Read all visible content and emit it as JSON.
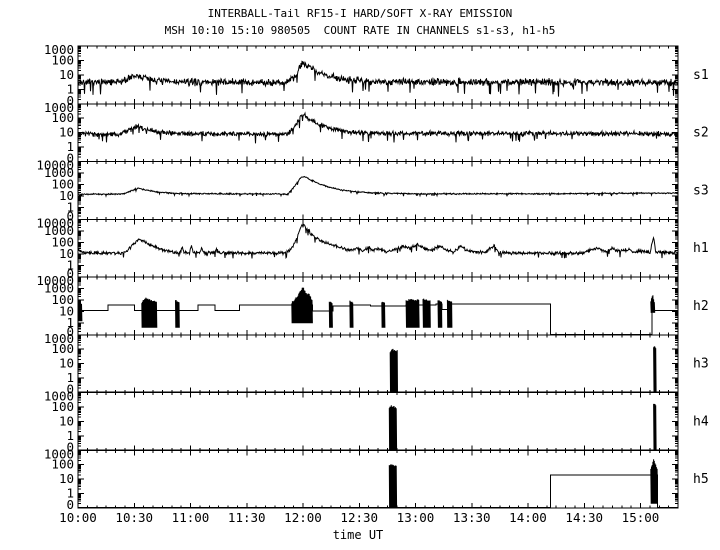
{
  "title": "INTERBALL-Tail RF15-I HARD/SOFT X-RAY EMISSION",
  "subtitle": "MSH 10:10 15:10 980505  COUNT RATE IN CHANNELS s1-s3, h1-h5",
  "xlabel": "time UT",
  "colors": {
    "background": "#ffffff",
    "line": "#000000"
  },
  "chart_data": {
    "type": "line",
    "title": "INTERBALL-Tail RF15-I HARD/SOFT X-RAY EMISSION",
    "subtitle": "MSH 10:10 15:10 980505  COUNT RATE IN CHANNELS s1-s3, h1-h5",
    "xlabel": "time UT",
    "y_scale": "log",
    "grid": false,
    "x_axis": {
      "t0": 600,
      "t1": 920,
      "major": 30,
      "minor": 5,
      "labels": [
        "10:00",
        "10:30",
        "11:00",
        "11:30",
        "12:00",
        "12:30",
        "13:00",
        "13:30",
        "14:00",
        "14:30",
        "15:00"
      ]
    },
    "panels": [
      {
        "label": "s1",
        "y_ticks": [
          "1000",
          "100",
          "10",
          "1",
          "0"
        ],
        "top": 1000,
        "decades": 4,
        "style": "noisy",
        "noise": 0.3,
        "points": [
          [
            600,
            3
          ],
          [
            621,
            3
          ],
          [
            627,
            5.5
          ],
          [
            631,
            8.5
          ],
          [
            636,
            6
          ],
          [
            643,
            4
          ],
          [
            652,
            3.2
          ],
          [
            712,
            3
          ],
          [
            716,
            8
          ],
          [
            719,
            55
          ],
          [
            721,
            65
          ],
          [
            724,
            35
          ],
          [
            728,
            15
          ],
          [
            734,
            8
          ],
          [
            742,
            5
          ],
          [
            754,
            3.8
          ],
          [
            770,
            3.3
          ],
          [
            920,
            3
          ]
        ]
      },
      {
        "label": "s2",
        "y_ticks": [
          "1000",
          "100",
          "10",
          "1",
          "0"
        ],
        "top": 1000,
        "decades": 4,
        "style": "noisy",
        "noise": 0.2,
        "points": [
          [
            600,
            8
          ],
          [
            622,
            8
          ],
          [
            628,
            16
          ],
          [
            631,
            27
          ],
          [
            636,
            17
          ],
          [
            644,
            11
          ],
          [
            654,
            8.5
          ],
          [
            712,
            8
          ],
          [
            716,
            30
          ],
          [
            719,
            140
          ],
          [
            721,
            160
          ],
          [
            724,
            80
          ],
          [
            729,
            35
          ],
          [
            736,
            17
          ],
          [
            746,
            11
          ],
          [
            758,
            9
          ],
          [
            920,
            8.3
          ]
        ]
      },
      {
        "label": "s3",
        "y_ticks": [
          "10000",
          "1000",
          "100",
          "10",
          "1",
          "0"
        ],
        "top": 10000,
        "decades": 5,
        "style": "noisy",
        "noise": 0.07,
        "points": [
          [
            600,
            15
          ],
          [
            624,
            15
          ],
          [
            629,
            32
          ],
          [
            632,
            48
          ],
          [
            637,
            32
          ],
          [
            644,
            21
          ],
          [
            653,
            17
          ],
          [
            712,
            15
          ],
          [
            716,
            90
          ],
          [
            719,
            420
          ],
          [
            721,
            500
          ],
          [
            724,
            260
          ],
          [
            728,
            130
          ],
          [
            734,
            60
          ],
          [
            741,
            33
          ],
          [
            750,
            22
          ],
          [
            762,
            18
          ],
          [
            780,
            16
          ],
          [
            850,
            16
          ],
          [
            900,
            18
          ],
          [
            920,
            18
          ]
        ]
      },
      {
        "label": "h1",
        "y_ticks": [
          "10000",
          "1000",
          "100",
          "10",
          "1",
          "0"
        ],
        "top": 10000,
        "decades": 5,
        "style": "noisy",
        "noise": 0.17,
        "points": [
          [
            600,
            22
          ],
          [
            604,
            12
          ],
          [
            625,
            12
          ],
          [
            629,
            50
          ],
          [
            632,
            180
          ],
          [
            635,
            120
          ],
          [
            639,
            55
          ],
          [
            645,
            22
          ],
          [
            651,
            13
          ],
          [
            654.5,
            13
          ],
          [
            655.5,
            38
          ],
          [
            656.5,
            13
          ],
          [
            659.5,
            13
          ],
          [
            660.5,
            60
          ],
          [
            661.5,
            13
          ],
          [
            665,
            13
          ],
          [
            666,
            35
          ],
          [
            667,
            13
          ],
          [
            673,
            13
          ],
          [
            674,
            45
          ],
          [
            675,
            13
          ],
          [
            680,
            12
          ],
          [
            710,
            12
          ],
          [
            714,
            30
          ],
          [
            717,
            300
          ],
          [
            719,
            2500
          ],
          [
            720,
            3800
          ],
          [
            722,
            1500
          ],
          [
            725,
            400
          ],
          [
            729,
            150
          ],
          [
            734,
            70
          ],
          [
            739,
            38
          ],
          [
            745,
            22
          ],
          [
            749,
            32
          ],
          [
            752,
            18
          ],
          [
            755,
            42
          ],
          [
            757,
            20
          ],
          [
            761,
            28
          ],
          [
            765,
            15
          ],
          [
            769,
            26
          ],
          [
            773,
            48
          ],
          [
            777,
            30
          ],
          [
            781,
            65
          ],
          [
            785,
            28
          ],
          [
            789,
            20
          ],
          [
            793,
            55
          ],
          [
            796,
            22
          ],
          [
            800,
            14
          ],
          [
            804,
            45
          ],
          [
            807,
            22
          ],
          [
            811,
            15
          ],
          [
            817,
            13
          ],
          [
            822,
            55
          ],
          [
            824,
            14
          ],
          [
            828,
            12
          ],
          [
            868,
            11
          ],
          [
            873,
            20
          ],
          [
            877,
            30
          ],
          [
            881,
            16
          ],
          [
            885,
            30
          ],
          [
            889,
            15
          ],
          [
            893,
            24
          ],
          [
            897,
            13
          ],
          [
            901,
            19
          ],
          [
            905,
            13
          ],
          [
            907,
            280
          ],
          [
            908,
            14
          ],
          [
            920,
            13
          ]
        ]
      },
      {
        "label": "h2",
        "y_ticks": [
          "10000",
          "1000",
          "100",
          "10",
          "1",
          "0"
        ],
        "top": 10000,
        "decades": 5,
        "style": "step",
        "points": [
          [
            600,
            12
          ],
          [
            616,
            38
          ],
          [
            630,
            12
          ],
          [
            664,
            38
          ],
          [
            673,
            12
          ],
          [
            686,
            38
          ],
          [
            725,
            11
          ],
          [
            736,
            30
          ],
          [
            745,
            38
          ],
          [
            756,
            30
          ],
          [
            775,
            38
          ],
          [
            791,
            45
          ],
          [
            794,
            15
          ],
          [
            798,
            45
          ],
          [
            852,
            0.105
          ],
          [
            906,
            12
          ]
        ],
        "bursts": [
          {
            "t0": 600,
            "t1": 602,
            "lo": 1.5,
            "env": [
              [
                600,
                70
              ],
              [
                602,
                50
              ]
            ]
          },
          {
            "t0": 634,
            "t1": 642,
            "lo": 0.4,
            "env": [
              [
                634,
                60
              ],
              [
                636,
                150
              ],
              [
                638,
                110
              ],
              [
                642,
                70
              ]
            ]
          },
          {
            "t0": 652,
            "t1": 654,
            "lo": 0.4,
            "env": [
              [
                652,
                90
              ],
              [
                654,
                70
              ]
            ]
          },
          {
            "t0": 714,
            "t1": 725,
            "lo": 1.0,
            "env": [
              [
                714,
                60
              ],
              [
                717,
                200
              ],
              [
                719,
                700
              ],
              [
                720,
                1300
              ],
              [
                721,
                650
              ],
              [
                722,
                300
              ],
              [
                723,
                420
              ],
              [
                725,
                80
              ]
            ]
          },
          {
            "t0": 734,
            "t1": 735.5,
            "lo": 0.4,
            "env": [
              [
                734,
                70
              ],
              [
                735.5,
                60
              ]
            ]
          },
          {
            "t0": 745,
            "t1": 746.5,
            "lo": 0.4,
            "env": [
              [
                745,
                80
              ],
              [
                746.5,
                60
              ]
            ]
          },
          {
            "t0": 762,
            "t1": 763.5,
            "lo": 0.4,
            "env": [
              [
                762,
                70
              ],
              [
                763.5,
                55
              ]
            ]
          },
          {
            "t0": 775,
            "t1": 782,
            "lo": 0.4,
            "env": [
              [
                775,
                90
              ],
              [
                778,
                130
              ],
              [
                780,
                90
              ],
              [
                782,
                110
              ]
            ]
          },
          {
            "t0": 784,
            "t1": 788,
            "lo": 0.4,
            "env": [
              [
                784,
                120
              ],
              [
                786,
                100
              ],
              [
                788,
                80
              ]
            ]
          },
          {
            "t0": 792,
            "t1": 794,
            "lo": 0.4,
            "env": [
              [
                792,
                90
              ],
              [
                794,
                70
              ]
            ]
          },
          {
            "t0": 797,
            "t1": 799.5,
            "lo": 0.4,
            "env": [
              [
                797,
                100
              ],
              [
                799.5,
                70
              ]
            ]
          },
          {
            "t0": 905.5,
            "t1": 907.5,
            "lo": 8,
            "env": [
              [
                905.5,
                80
              ],
              [
                906.5,
                350
              ],
              [
                907.5,
                50
              ]
            ]
          }
        ]
      },
      {
        "label": "h3",
        "y_ticks": [
          "1000",
          "100",
          "10",
          "1",
          "0"
        ],
        "top": 1000,
        "decades": 4,
        "style": "step",
        "points": [
          [
            600,
            0.105
          ]
        ],
        "bursts": [
          {
            "t0": 766.5,
            "t1": 770.5,
            "lo": 0.105,
            "env": [
              [
                766.5,
                70
              ],
              [
                768,
                95
              ],
              [
                770.5,
                75
              ]
            ]
          },
          {
            "t0": 907,
            "t1": 908.2,
            "lo": 0.105,
            "env": [
              [
                907,
                150
              ],
              [
                908.2,
                130
              ]
            ]
          }
        ]
      },
      {
        "label": "h4",
        "y_ticks": [
          "1000",
          "100",
          "10",
          "1",
          "0"
        ],
        "top": 1000,
        "decades": 4,
        "style": "step",
        "points": [
          [
            600,
            0.105
          ]
        ],
        "bursts": [
          {
            "t0": 766,
            "t1": 770,
            "lo": 0.105,
            "env": [
              [
                766,
                95
              ],
              [
                767.5,
                120
              ],
              [
                770,
                85
              ]
            ]
          },
          {
            "t0": 907,
            "t1": 908.2,
            "lo": 0.105,
            "env": [
              [
                907,
                155
              ],
              [
                908.2,
                135
              ]
            ]
          }
        ]
      },
      {
        "label": "h5",
        "y_ticks": [
          "1000",
          "100",
          "10",
          "1",
          "0"
        ],
        "top": 1000,
        "decades": 4,
        "style": "step",
        "points": [
          [
            600,
            0.105
          ],
          [
            852,
            20
          ],
          [
            909,
            0.105
          ]
        ],
        "bursts": [
          {
            "t0": 766,
            "t1": 770,
            "lo": 0.105,
            "env": [
              [
                766,
                85
              ],
              [
                767.5,
                105
              ],
              [
                770,
                70
              ]
            ]
          },
          {
            "t0": 905.5,
            "t1": 909,
            "lo": 0.2,
            "env": [
              [
                905.5,
                50
              ],
              [
                907,
                240
              ],
              [
                909,
                40
              ]
            ]
          }
        ]
      }
    ]
  }
}
